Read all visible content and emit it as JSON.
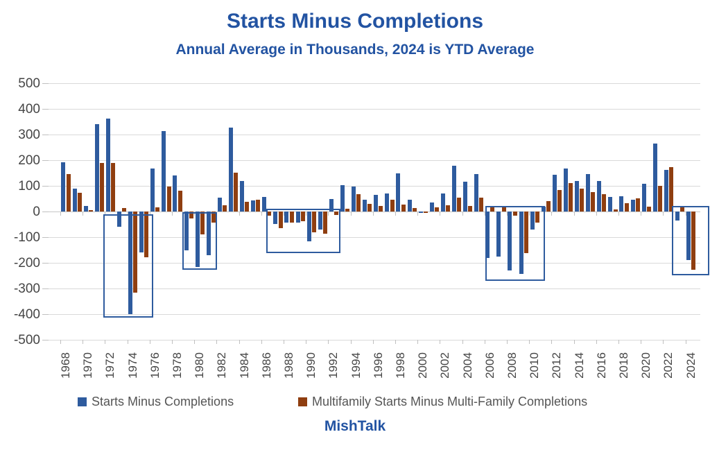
{
  "header": {
    "title": "Starts Minus Completions",
    "subtitle": "Annual Average in Thousands, 2024 is YTD Average"
  },
  "footer": {
    "brand": "MishTalk"
  },
  "colors": {
    "title_blue": "#2253a2",
    "starts_blue": "#2e5b9e",
    "multifamily_brown": "#8f3e10",
    "axis_text": "#454545",
    "legend_text": "#555555",
    "gridline": "#d9d9d9",
    "highlight_border": "#2e5b9e"
  },
  "chart_data": {
    "type": "bar",
    "title": "Starts Minus Completions",
    "subtitle": "Annual Average in Thousands, 2024 is YTD Average",
    "xlabel": "",
    "ylabel": "",
    "ylim": [
      -500,
      500
    ],
    "yticks": [
      500,
      400,
      300,
      200,
      100,
      0,
      -100,
      -200,
      -300,
      -400,
      -500
    ],
    "x_label_interval": 2,
    "grid": "horizontal",
    "legend_position": "bottom",
    "categories": [
      1968,
      1969,
      1970,
      1971,
      1972,
      1973,
      1974,
      1975,
      1976,
      1977,
      1978,
      1979,
      1980,
      1981,
      1982,
      1983,
      1984,
      1985,
      1986,
      1987,
      1988,
      1989,
      1990,
      1991,
      1992,
      1993,
      1994,
      1995,
      1996,
      1997,
      1998,
      1999,
      2000,
      2001,
      2002,
      2003,
      2004,
      2005,
      2006,
      2007,
      2008,
      2009,
      2010,
      2011,
      2012,
      2013,
      2014,
      2015,
      2016,
      2017,
      2018,
      2019,
      2020,
      2021,
      2022,
      2023,
      2024
    ],
    "series": [
      {
        "name": "Starts Minus Completions",
        "color": "#2e5b9e",
        "values": [
          192,
          88,
          22,
          340,
          361,
          -60,
          -399,
          -160,
          168,
          314,
          140,
          -151,
          -216,
          -170,
          54,
          328,
          118,
          43,
          58,
          -48,
          -42,
          -44,
          -116,
          -70,
          49,
          103,
          98,
          45,
          64,
          70,
          149,
          45,
          -6,
          36,
          69,
          179,
          116,
          147,
          -181,
          -177,
          -231,
          -243,
          -71,
          18,
          143,
          167,
          120,
          147,
          118,
          58,
          60,
          45,
          109,
          265,
          163,
          -34,
          -188
        ]
      },
      {
        "name": "Multifamily Starts Minus Multi-Family Completions",
        "color": "#8f3e10",
        "values": [
          145,
          73,
          5,
          190,
          188,
          13,
          -316,
          -178,
          15,
          98,
          80,
          -28,
          -90,
          -43,
          23,
          151,
          38,
          47,
          -15,
          -65,
          -44,
          -37,
          -80,
          -87,
          -13,
          10,
          68,
          30,
          21,
          47,
          27,
          13,
          -4,
          16,
          24,
          54,
          21,
          55,
          20,
          22,
          -15,
          -163,
          -44,
          40,
          83,
          111,
          89,
          77,
          68,
          9,
          32,
          52,
          18,
          100,
          174,
          15,
          -228
        ]
      }
    ],
    "highlights": [
      {
        "from_year": 1972,
        "from_offset": -10,
        "to_year": 1975,
        "to_offset": 13,
        "v_top": -10,
        "v_bottom": -413
      },
      {
        "from_year": 1979,
        "from_offset": -9,
        "to_year": 1981,
        "to_offset": 9,
        "v_top": -2,
        "v_bottom": -228
      },
      {
        "from_year": 1986,
        "from_offset": -1,
        "to_year": 1992,
        "to_offset": 10,
        "v_top": 12,
        "v_bottom": -163
      },
      {
        "from_year": 2006,
        "from_offset": -7,
        "to_year": 2010,
        "to_offset": 15,
        "v_top": 22,
        "v_bottom": -270
      },
      {
        "from_year": 2023,
        "from_offset": -12,
        "to_year": 2024,
        "to_offset": 26,
        "v_top": 22,
        "v_bottom": -250
      }
    ]
  }
}
